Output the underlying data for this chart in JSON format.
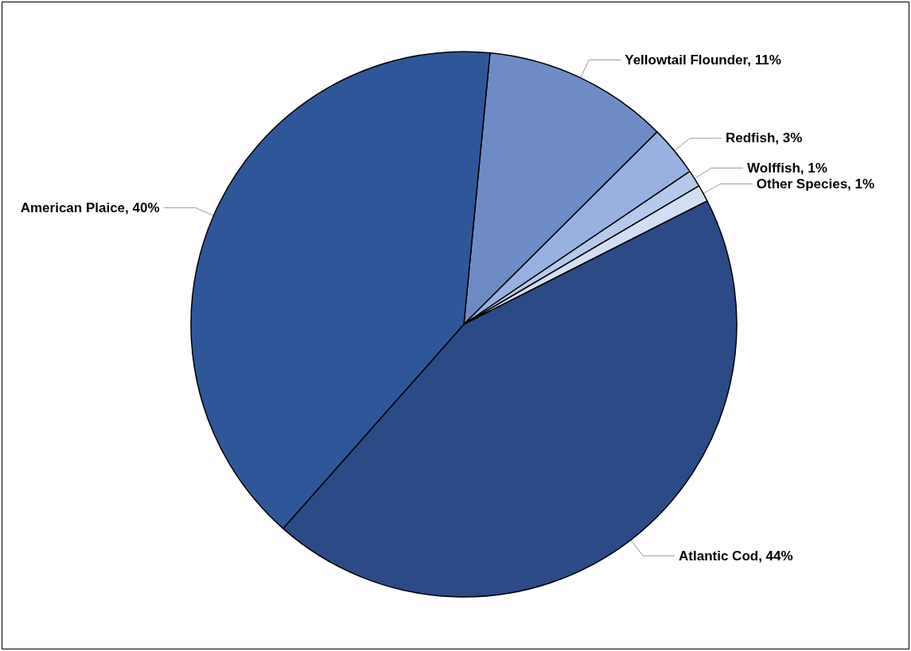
{
  "chart_data": {
    "type": "pie",
    "categories": [
      "Yellowtail Flounder",
      "Redfish",
      "Wolffish",
      "Other Species",
      "Atlantic Cod",
      "American Plaice"
    ],
    "values": [
      11,
      3,
      1,
      1,
      44,
      40
    ],
    "value_labels": [
      "11%",
      "3%",
      "1%",
      "1%",
      "44%",
      "40%"
    ],
    "colors": [
      "#6f8bc6",
      "#98b1e0",
      "#b7c9eb",
      "#d3def2",
      "#2b4a86",
      "#30569a"
    ],
    "legend": false
  }
}
